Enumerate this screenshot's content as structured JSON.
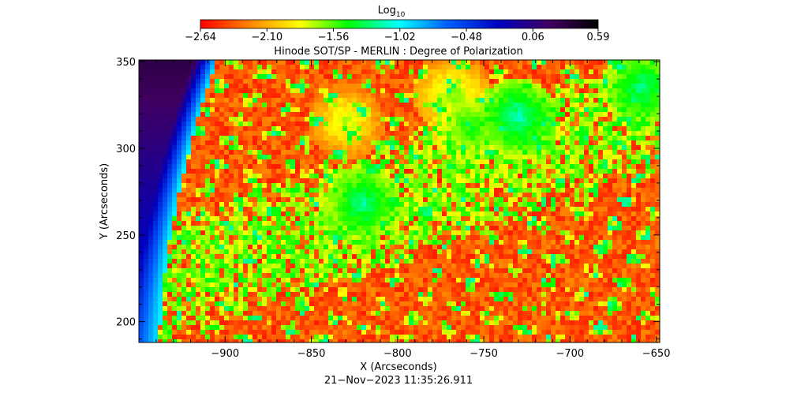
{
  "chart_data": {
    "type": "heatmap",
    "title": "Hinode SOT/SP - MERLIN : Degree of Polarization",
    "xlabel": "X (Arcseconds)",
    "ylabel": "Y (Arcseconds)",
    "xlim": [
      -950,
      -648
    ],
    "ylim": [
      188,
      351
    ],
    "xticks": [
      -900,
      -850,
      -800,
      -750,
      -700,
      -650
    ],
    "xtick_labels": [
      "−900",
      "−850",
      "−800",
      "−750",
      "−700",
      "−650"
    ],
    "yticks": [
      200,
      250,
      300,
      350
    ],
    "ytick_labels": [
      "200",
      "250",
      "300",
      "350"
    ],
    "colorbar": {
      "label": "Log",
      "label_subscript": "10",
      "min": -2.64,
      "max": 0.59,
      "ticks": [
        -2.64,
        -2.1,
        -1.56,
        -1.02,
        -0.48,
        0.06,
        0.59
      ],
      "tick_labels": [
        "−2.64",
        "−2.10",
        "−1.56",
        "−1.02",
        "−0.48",
        "0.06",
        "0.59"
      ],
      "colormap": [
        "#ff0000",
        "#ff8000",
        "#ffff00",
        "#00ff00",
        "#00ffff",
        "#0060ff",
        "#0000c0",
        "#400060",
        "#000000"
      ]
    },
    "features": [
      {
        "x": -820,
        "y": 268,
        "value": -1.2
      },
      {
        "x": -730,
        "y": 318,
        "value": -1.15
      },
      {
        "x": -757,
        "y": 312,
        "value": -1.4
      },
      {
        "x": -658,
        "y": 335,
        "value": -1.2
      },
      {
        "x": -830,
        "y": 315,
        "value": -1.7
      },
      {
        "x": -768,
        "y": 330,
        "value": -1.6
      }
    ],
    "limb_region": {
      "value_top": 0.3,
      "value_edge": -1.0
    },
    "grid": false,
    "timestamp": "21−Nov−2023 11:35:26.911"
  }
}
